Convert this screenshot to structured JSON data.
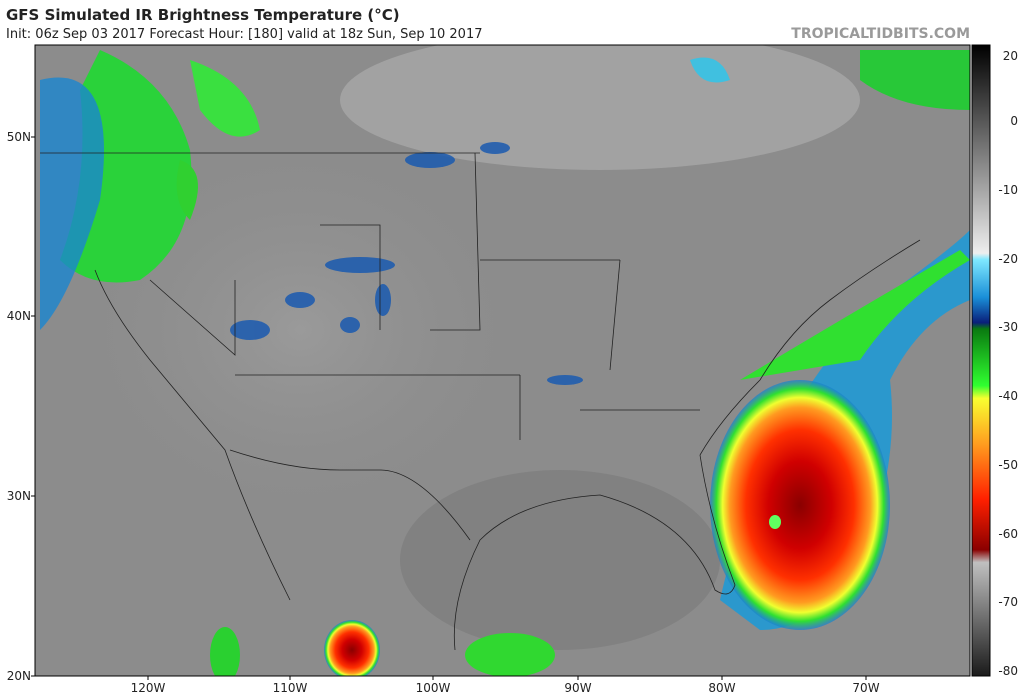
{
  "header": {
    "title": "GFS Simulated IR Brightness Temperature (°C)",
    "subtitle": "Init: 06z Sep 03 2017   Forecast Hour: [180]   valid at 18z Sun, Sep 10 2017",
    "site": "TROPICALTIDBITS.COM"
  },
  "map": {
    "lat_labels": [
      "50N",
      "40N",
      "30N",
      "20N"
    ],
    "lon_labels": [
      "120W",
      "110W",
      "100W",
      "90W",
      "80W",
      "70W"
    ]
  },
  "colorbar": {
    "labels": [
      "20",
      "0",
      "-10",
      "-20",
      "-30",
      "-40",
      "-50",
      "-60",
      "-70",
      "-80"
    ]
  }
}
